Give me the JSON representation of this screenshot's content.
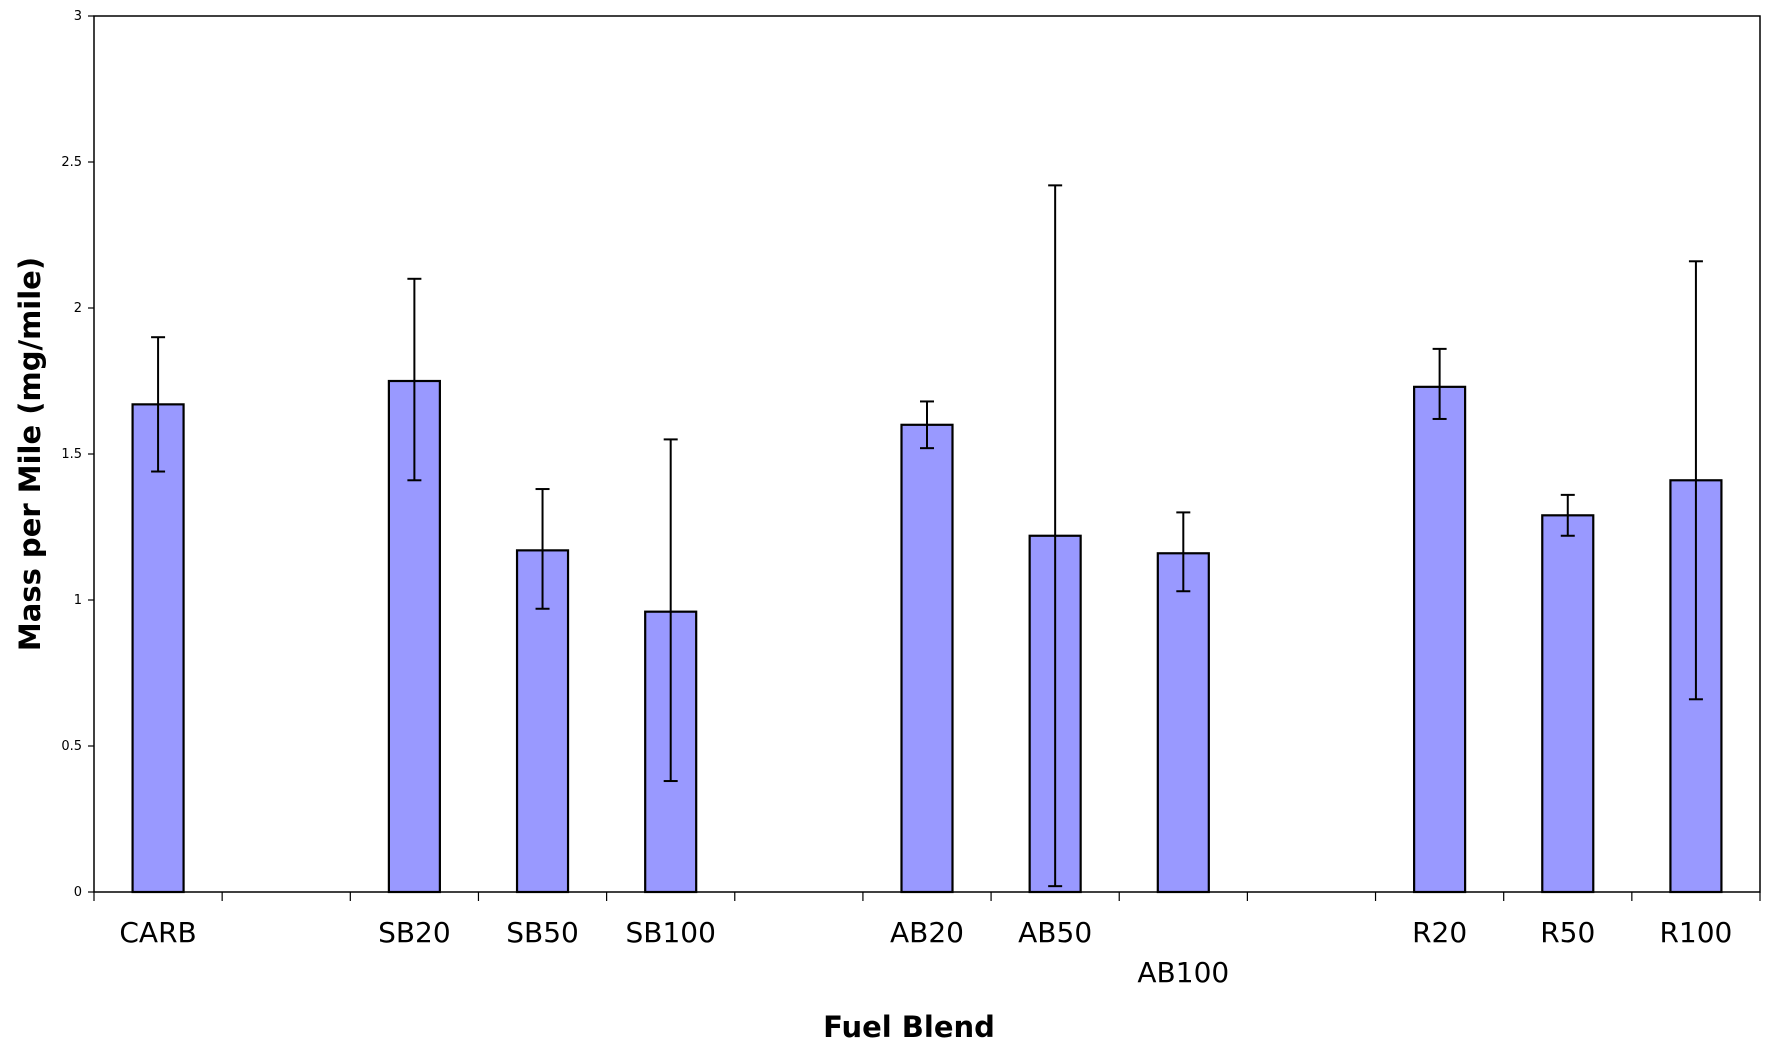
{
  "chart_data": {
    "type": "bar",
    "title": "",
    "xlabel": "Fuel Blend",
    "ylabel": "Mass per Mile (mg/mile)",
    "ylim": [
      0,
      3
    ],
    "yticks": [
      "0",
      "0.5",
      "1",
      "1.5",
      "2",
      "2.5",
      "3"
    ],
    "grid": false,
    "legend": "none",
    "bar_color": "#9999ff",
    "bar_edge_color": "#000000",
    "slots": 13,
    "categories": [
      "CARB",
      "",
      "SB20",
      "SB50",
      "SB100",
      "",
      "AB20",
      "AB50",
      "AB100",
      "",
      "R20",
      "R50",
      "R100"
    ],
    "values": [
      1.67,
      null,
      1.75,
      1.17,
      0.96,
      null,
      1.6,
      1.22,
      1.16,
      null,
      1.73,
      1.29,
      1.41
    ],
    "error_low": [
      1.44,
      null,
      1.41,
      0.97,
      0.38,
      null,
      1.52,
      0.02,
      1.03,
      null,
      1.62,
      1.22,
      0.66
    ],
    "error_high": [
      1.9,
      null,
      2.1,
      1.38,
      1.55,
      null,
      1.68,
      2.42,
      1.3,
      null,
      1.86,
      1.36,
      2.16
    ]
  }
}
